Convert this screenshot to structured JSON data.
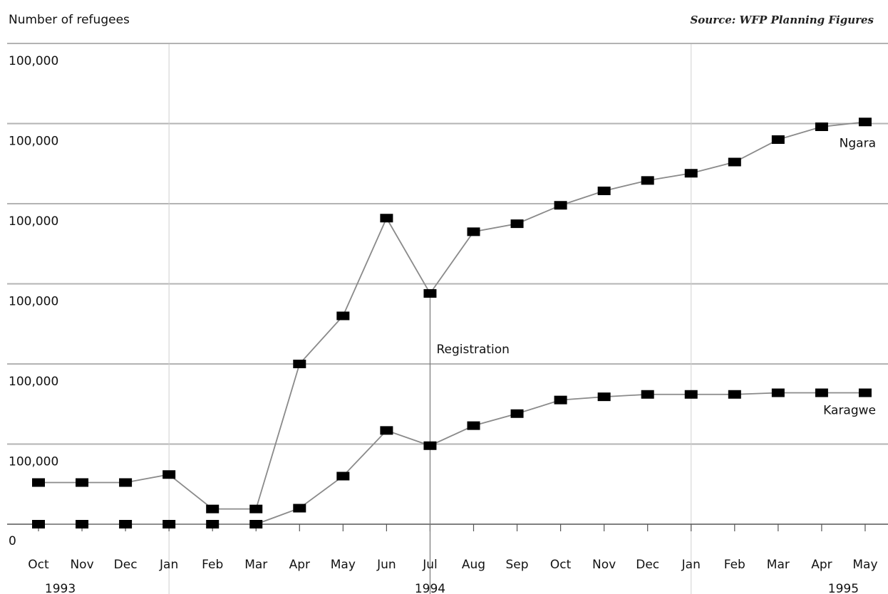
{
  "chart_data": {
    "type": "line",
    "title": "",
    "ylabel": "Number of refugees",
    "source": "Source: WFP Planning Figures",
    "y_tick_labels": [
      "0",
      "100,000",
      "100,000",
      "100,000",
      "100,000",
      "100,000",
      "100,000"
    ],
    "ylim": [
      0,
      600000
    ],
    "categories": [
      "Oct",
      "Nov",
      "Dec",
      "Jan",
      "Feb",
      "Mar",
      "Apr",
      "May",
      "Jun",
      "Jul",
      "Aug",
      "Sep",
      "Oct",
      "Nov",
      "Dec",
      "Jan",
      "Feb",
      "Mar",
      "Apr",
      "May"
    ],
    "years": [
      {
        "label": "1993",
        "index": 0.5
      },
      {
        "label": "1994",
        "index": 9
      },
      {
        "label": "1995",
        "index": 18.5
      }
    ],
    "year_dividers": [
      3,
      15
    ],
    "series": [
      {
        "name": "Ngara",
        "values": [
          52000,
          52000,
          52000,
          62000,
          19000,
          19000,
          200000,
          260000,
          382000,
          288000,
          365000,
          375000,
          398000,
          416000,
          429000,
          438000,
          452000,
          480000,
          496000,
          502000
        ]
      },
      {
        "name": "Karagwe",
        "values": [
          0,
          0,
          0,
          0,
          0,
          0,
          20000,
          60000,
          117000,
          98000,
          123000,
          138000,
          155000,
          159000,
          162000,
          162000,
          162000,
          164000,
          164000,
          164000
        ]
      }
    ],
    "annotations": [
      {
        "text": "Registration",
        "index": 9
      }
    ],
    "grid": "horizontal"
  }
}
